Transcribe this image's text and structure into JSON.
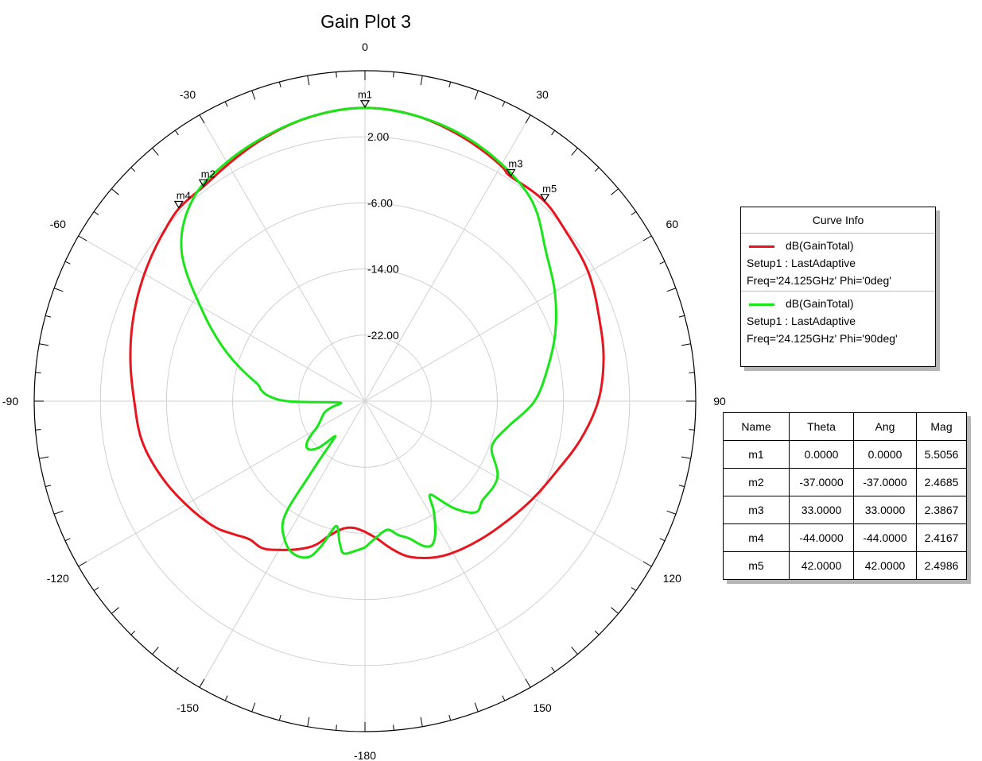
{
  "chart_data": {
    "type": "polar-line",
    "title": "Gain Plot 3",
    "angle_ticks": [
      0,
      30,
      60,
      90,
      120,
      150,
      -180,
      -150,
      -120,
      -90,
      -60,
      -30
    ],
    "radial_range": [
      -30,
      10
    ],
    "radial_ticks": [
      2.0,
      -6.0,
      -14.0,
      -22.0
    ],
    "radial_tick_labels": [
      "2.00",
      "-6.00",
      "-14.00",
      "-22.00"
    ],
    "series": [
      {
        "name": "dB(GainTotal)",
        "setup": "Setup1 : LastAdaptive",
        "variation": "Freq='24.125GHz' Phi='0deg'",
        "color": "#e8141e",
        "theta": [
          -180,
          -175,
          -170,
          -165,
          -160,
          -150,
          -145,
          -140,
          -135,
          -130,
          -120,
          -110,
          -100,
          -90,
          -80,
          -70,
          -60,
          -50,
          -44,
          -37,
          -30,
          -20,
          -10,
          0,
          10,
          20,
          30,
          33,
          42,
          50,
          60,
          70,
          80,
          90,
          100,
          110,
          120,
          130,
          140,
          150,
          155,
          160,
          165,
          170,
          175,
          180
        ],
        "gain_db": [
          -14.2,
          -14.6,
          -14.3,
          -13.1,
          -11.3,
          -9.2,
          -8.3,
          -8.2,
          -7.3,
          -6.3,
          -5.0,
          -3.7,
          -2.6,
          -2.1,
          -1.2,
          -0.2,
          0.8,
          1.8,
          2.4,
          2.5,
          3.1,
          4.2,
          5.1,
          5.5,
          5.1,
          4.1,
          2.9,
          2.4,
          2.5,
          1.8,
          1.2,
          0.1,
          -0.7,
          -1.8,
          -3.5,
          -5.3,
          -6.5,
          -7.5,
          -8.2,
          -8.8,
          -9.2,
          -9.8,
          -10.6,
          -11.9,
          -13.3,
          -14.2
        ]
      },
      {
        "name": "dB(GainTotal)",
        "setup": "Setup1 : LastAdaptive",
        "variation": "Freq='24.125GHz' Phi='90deg'",
        "color": "#19e619",
        "theta": [
          -180,
          -176,
          -172,
          -170,
          -167,
          -163,
          -160,
          -155,
          -150,
          -145,
          -143,
          -140,
          -135,
          -130,
          -125,
          -118,
          -110,
          -105,
          -100,
          -95,
          -92,
          -90,
          -87,
          -84,
          -80,
          -70,
          -60,
          -50,
          -40,
          -30,
          -20,
          -10,
          0,
          10,
          20,
          30,
          40,
          50,
          60,
          70,
          80,
          90,
          100,
          110,
          120,
          130,
          135,
          140,
          145,
          148,
          152,
          155,
          158,
          162,
          166,
          170,
          175,
          180
        ],
        "gain_db": [
          -12.3,
          -11.8,
          -11.4,
          -12.5,
          -14.5,
          -11.5,
          -9.9,
          -9.6,
          -10.6,
          -13.1,
          -19.3,
          -24.4,
          -22.0,
          -21.0,
          -21.5,
          -23.5,
          -24.5,
          -25.0,
          -26.0,
          -27.1,
          -26.0,
          -20.6,
          -18.4,
          -17.4,
          -16.5,
          -12.0,
          -7.0,
          -1.0,
          2.2,
          3.4,
          4.3,
          5.1,
          5.5,
          5.1,
          4.3,
          3.1,
          1.5,
          -1.5,
          -3.5,
          -5.5,
          -7.6,
          -9.5,
          -12.4,
          -13.7,
          -11.5,
          -11.4,
          -11.0,
          -13.0,
          -16.2,
          -14.3,
          -11.9,
          -10.8,
          -11.1,
          -12.5,
          -13.3,
          -14.2,
          -13.5,
          -12.3
        ]
      }
    ],
    "markers": [
      {
        "name": "m1",
        "theta": 0.0,
        "mag": 5.5056
      },
      {
        "name": "m2",
        "theta": -37.0,
        "mag": 2.4685
      },
      {
        "name": "m3",
        "theta": 33.0,
        "mag": 2.3867
      },
      {
        "name": "m4",
        "theta": -44.0,
        "mag": 2.4167
      },
      {
        "name": "m5",
        "theta": 42.0,
        "mag": 2.4986
      }
    ]
  },
  "legend": {
    "title": "Curve Info",
    "entries": [
      {
        "label": "dB(GainTotal)",
        "setup": "Setup1 : LastAdaptive",
        "variation": "Freq='24.125GHz' Phi='0deg'"
      },
      {
        "label": "dB(GainTotal)",
        "setup": "Setup1 : LastAdaptive",
        "variation": "Freq='24.125GHz' Phi='90deg'"
      }
    ]
  },
  "marker_table": {
    "headers": [
      "Name",
      "Theta",
      "Ang",
      "Mag"
    ],
    "rows": [
      [
        "m1",
        "0.0000",
        "0.0000",
        "5.5056"
      ],
      [
        "m2",
        "-37.0000",
        "-37.0000",
        "2.4685"
      ],
      [
        "m3",
        "33.0000",
        "33.0000",
        "2.3867"
      ],
      [
        "m4",
        "-44.0000",
        "-44.0000",
        "2.4167"
      ],
      [
        "m5",
        "42.0000",
        "42.0000",
        "2.4986"
      ]
    ]
  }
}
